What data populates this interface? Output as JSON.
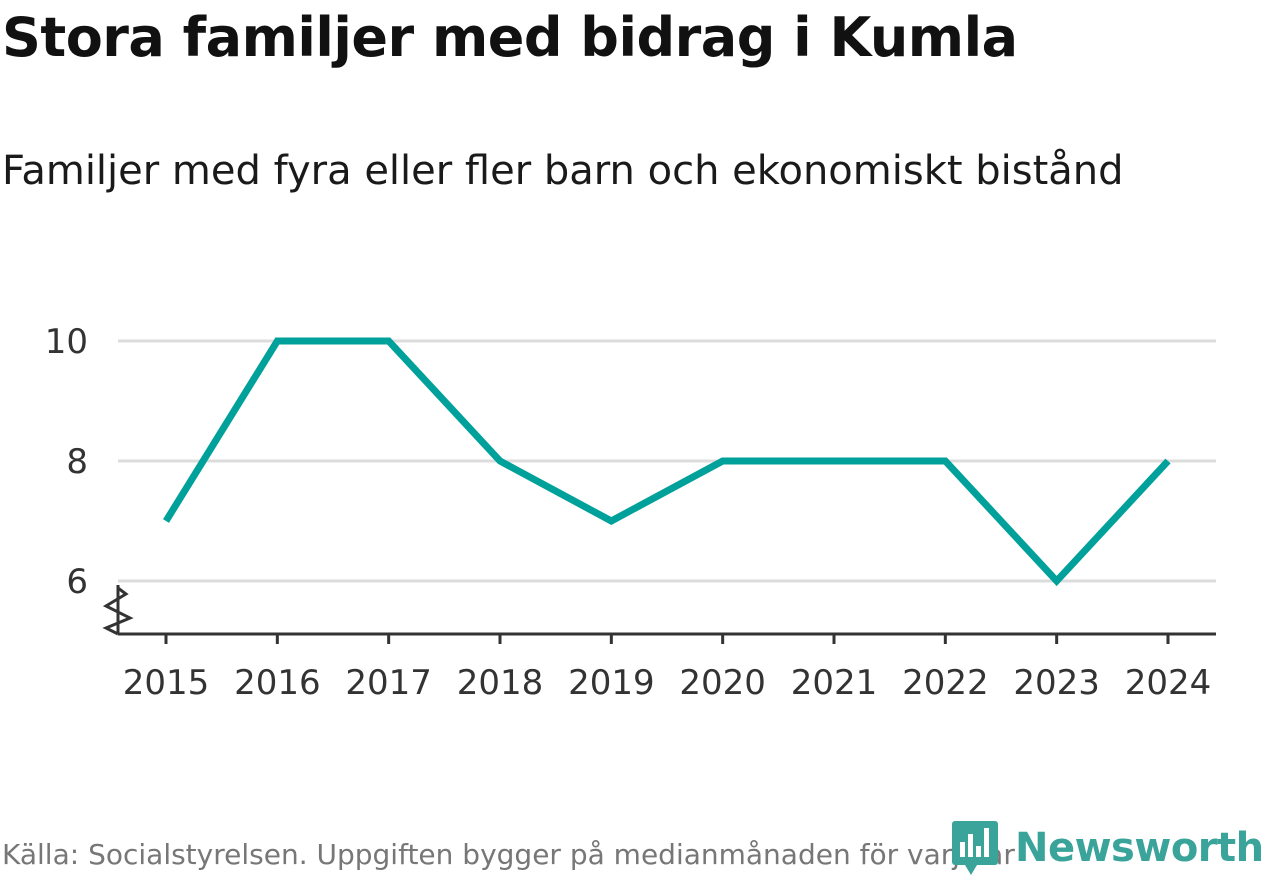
{
  "chart_data": {
    "type": "line",
    "title": "Stora familjer med bidrag i Kumla",
    "subtitle": "Familjer med fyra eller fler barn och ekonomiskt bistånd",
    "x": [
      "2015",
      "2016",
      "2017",
      "2018",
      "2019",
      "2020",
      "2021",
      "2022",
      "2023",
      "2024"
    ],
    "series": [
      {
        "values": [
          7,
          10,
          10,
          8,
          7,
          8,
          8,
          8,
          6,
          8
        ]
      }
    ],
    "yticks": [
      6,
      8,
      10
    ],
    "ylim": [
      5.1,
      10
    ],
    "y_axis_break": true,
    "grid": true,
    "line_color": "#00a19a",
    "grid_color": "#dcdcdc",
    "axis_color": "#333333"
  },
  "footer": {
    "source": "Källa: Socialstyrelsen. Uppgiften bygger på medianmånaden för varje år"
  },
  "logo": {
    "text": "Newsworthy",
    "icon": "newsworthy-logo-icon",
    "color": "#3aa39a"
  }
}
